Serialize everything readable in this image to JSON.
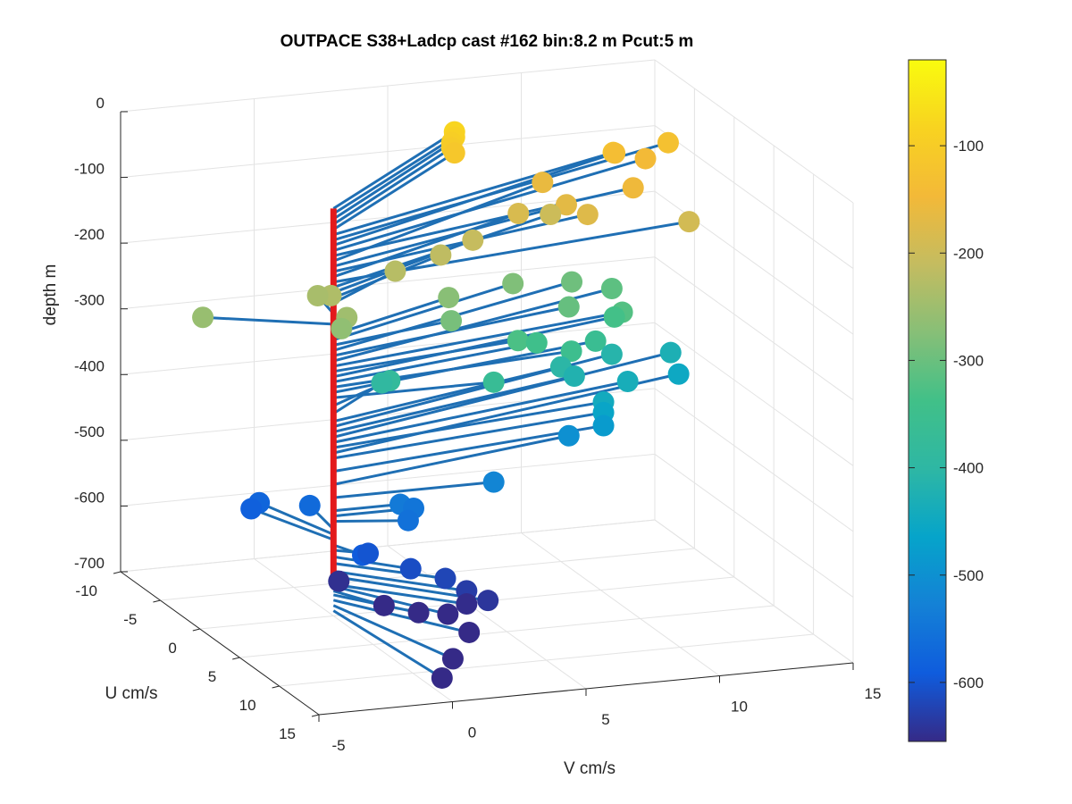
{
  "chart_data": {
    "type": "scatter",
    "title": "OUTPACE S38+Ladcp cast #162 bin:8.2 m  Pcut:5 m",
    "xlabel": "U cm/s",
    "ylabel": "V cm/s",
    "zlabel": "depth m",
    "xlim": [
      -10,
      15
    ],
    "ylim": [
      -5,
      15
    ],
    "zlim": [
      -700,
      0
    ],
    "xticks": [
      "-10",
      "-5",
      "0",
      "5",
      "10",
      "15"
    ],
    "yticks": [
      "-5",
      "0",
      "5",
      "10",
      "15"
    ],
    "zticks": [
      "0",
      "-100",
      "-200",
      "-300",
      "-400",
      "-500",
      "-600",
      "-700"
    ],
    "grid": true,
    "colorbar": {
      "ticks": [
        "-100",
        "-200",
        "-300",
        "-400",
        "-500",
        "-600"
      ],
      "range": [
        -655,
        -20
      ],
      "colormap": "parula"
    },
    "profile_line": {
      "color": "#e31a1c",
      "u": 0,
      "v": 0,
      "z_range": [
        -650,
        -80
      ]
    },
    "stick_color": "#1f6fb4",
    "points": [
      {
        "z": -80,
        "u": -10,
        "v": 7.5
      },
      {
        "z": -88,
        "u": -10,
        "v": 7.5
      },
      {
        "z": -96,
        "u": -10,
        "v": 7.4
      },
      {
        "z": -104,
        "u": -10,
        "v": 7.4
      },
      {
        "z": -112,
        "u": -10,
        "v": 7.5
      },
      {
        "z": -120,
        "u": -8.5,
        "v": 13.0
      },
      {
        "z": -128,
        "u": -10,
        "v": 15.5
      },
      {
        "z": -136,
        "u": -10,
        "v": 13.5
      },
      {
        "z": -144,
        "u": -9.5,
        "v": 14.5
      },
      {
        "z": -152,
        "u": -6,
        "v": 13.0
      },
      {
        "z": -160,
        "u": -9,
        "v": 10.5
      },
      {
        "z": -168,
        "u": -6,
        "v": 10.5
      },
      {
        "z": -176,
        "u": -5,
        "v": 11.0
      },
      {
        "z": -184,
        "u": -7,
        "v": 9.0
      },
      {
        "z": -192,
        "u": -4,
        "v": 14.5
      },
      {
        "z": -200,
        "u": -8,
        "v": 10.5
      },
      {
        "z": -208,
        "u": -6,
        "v": 7.0
      },
      {
        "z": -216,
        "u": -5,
        "v": 5.5
      },
      {
        "z": -224,
        "u": -4,
        "v": 3.5
      },
      {
        "z": -232,
        "u": -2,
        "v": 0.5
      },
      {
        "z": -240,
        "u": -3,
        "v": 0.3
      },
      {
        "z": -248,
        "u": 0,
        "v": 0.5
      },
      {
        "z": -256,
        "u": -3,
        "v": -4.0
      },
      {
        "z": -264,
        "u": 0,
        "v": 0.3
      },
      {
        "z": -272,
        "u": -4,
        "v": 5.5
      },
      {
        "z": -280,
        "u": -6,
        "v": 8.5
      },
      {
        "z": -288,
        "u": -2,
        "v": 5.0
      },
      {
        "z": -296,
        "u": -7,
        "v": 11.0
      },
      {
        "z": -304,
        "u": -4,
        "v": 10.0
      },
      {
        "z": -312,
        "u": -7,
        "v": 12.5
      },
      {
        "z": -320,
        "u": -4,
        "v": 12.0
      },
      {
        "z": -328,
        "u": -2,
        "v": 7.5
      },
      {
        "z": -336,
        "u": -5,
        "v": 12.0
      },
      {
        "z": -344,
        "u": -3,
        "v": 8.5
      },
      {
        "z": -352,
        "u": -2,
        "v": 9.5
      },
      {
        "z": -360,
        "u": -4,
        "v": 11.0
      },
      {
        "z": -368,
        "u": 0,
        "v": 6.0
      },
      {
        "z": -380,
        "u": -3,
        "v": 3.0
      },
      {
        "z": -392,
        "u": -4,
        "v": 3.0
      },
      {
        "z": -404,
        "u": -5,
        "v": 10.0
      },
      {
        "z": -412,
        "u": -7,
        "v": 12.5
      },
      {
        "z": -420,
        "u": -5,
        "v": 10.5
      },
      {
        "z": -428,
        "u": -8,
        "v": 15.0
      },
      {
        "z": -436,
        "u": -5,
        "v": 12.5
      },
      {
        "z": -444,
        "u": -3,
        "v": 11.0
      },
      {
        "z": -452,
        "u": -7,
        "v": 15.0
      },
      {
        "z": -460,
        "u": -3,
        "v": 11.0
      },
      {
        "z": -480,
        "u": -3,
        "v": 11.0
      },
      {
        "z": -500,
        "u": -4,
        "v": 10.0
      },
      {
        "z": -520,
        "u": 0,
        "v": 6.0
      },
      {
        "z": -540,
        "u": 0,
        "v": 2.5
      },
      {
        "z": -548,
        "u": 0,
        "v": 3.0
      },
      {
        "z": -556,
        "u": 1,
        "v": 2.5
      },
      {
        "z": -568,
        "u": -4,
        "v": 0.3
      },
      {
        "z": -576,
        "u": -6,
        "v": -1.0
      },
      {
        "z": -584,
        "u": -6,
        "v": -1.3
      },
      {
        "z": -592,
        "u": 2,
        "v": 0.5
      },
      {
        "z": -600,
        "u": 1,
        "v": 1.0
      },
      {
        "z": -610,
        "u": 3,
        "v": 2.0
      },
      {
        "z": -620,
        "u": 4,
        "v": 3.0
      },
      {
        "z": -632,
        "u": 5,
        "v": 3.5
      },
      {
        "z": -640,
        "u": 6,
        "v": 4.0
      },
      {
        "z": -648,
        "u": 0,
        "v": 0.2
      },
      {
        "z": -652,
        "u": 5,
        "v": 3.5
      },
      {
        "z": -655,
        "u": 6,
        "v": 2.5
      },
      {
        "z": -662,
        "u": 3,
        "v": 1.0
      },
      {
        "z": -668,
        "u": 4,
        "v": 2.0
      },
      {
        "z": -676,
        "u": 7,
        "v": 3.0
      },
      {
        "z": -684,
        "u": 10,
        "v": 1.5
      },
      {
        "z": -692,
        "u": 12,
        "v": 0.5
      }
    ]
  }
}
